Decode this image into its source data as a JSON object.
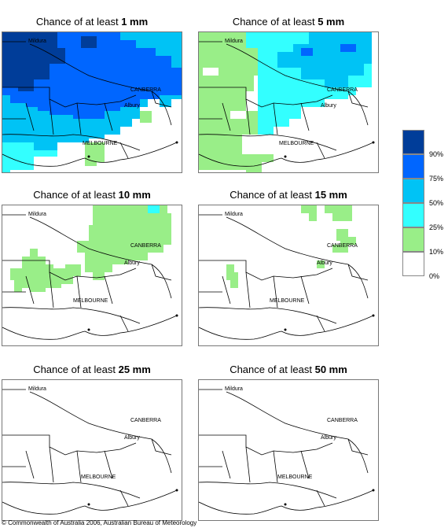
{
  "panels": [
    {
      "title_prefix": "Chance of at least ",
      "title_value": "1 mm"
    },
    {
      "title_prefix": "Chance of at least ",
      "title_value": "5 mm"
    },
    {
      "title_prefix": "Chance of at least ",
      "title_value": "10 mm"
    },
    {
      "title_prefix": "Chance of at least ",
      "title_value": "15 mm"
    },
    {
      "title_prefix": "Chance of at least ",
      "title_value": "25 mm"
    },
    {
      "title_prefix": "Chance of at least ",
      "title_value": "50 mm"
    }
  ],
  "places": {
    "mildura": "Mildura",
    "canberra": "CANBERRA",
    "albury": "Albury",
    "melbourne": "MELBOURNE"
  },
  "legend": {
    "colors": [
      "#003d99",
      "#0066ff",
      "#00c3f5",
      "#33ffff",
      "#99ee88",
      "#ffffff"
    ],
    "ticks": [
      "90%",
      "75%",
      "50%",
      "25%",
      "10%",
      "0%"
    ]
  },
  "copyright": "© Commonwealth of Australia 2006, Australian Bureau of Meteorology"
}
